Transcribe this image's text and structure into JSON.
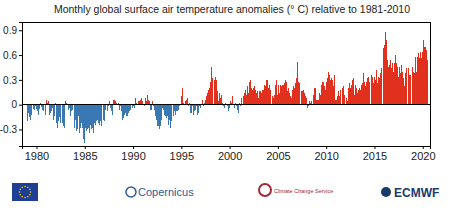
{
  "chart_data": {
    "type": "bar",
    "title": "Monthly global surface air temperature anomalies (° C) relative to 1981-2010",
    "color": {
      "positive": "#e2301f",
      "negative": "#3a78b4"
    },
    "grid": false,
    "xlim": [
      1978.5,
      2020.75
    ],
    "xticks": [
      1980,
      1985,
      1990,
      1995,
      2000,
      2005,
      2010,
      2015,
      2020
    ],
    "ylim": [
      -0.5,
      1.0
    ],
    "yticks": [
      -0.3,
      0,
      0.3,
      0.6,
      0.9
    ],
    "x": [
      1979.04,
      1979.13,
      1979.21,
      1979.29,
      1979.38,
      1979.46,
      1979.54,
      1979.63,
      1979.71,
      1979.79,
      1979.88,
      1979.96,
      1980.04,
      1980.13,
      1980.21,
      1980.29,
      1980.38,
      1980.46,
      1980.54,
      1980.63,
      1980.71,
      1980.79,
      1980.88,
      1980.96,
      1981.04,
      1981.13,
      1981.21,
      1981.29,
      1981.38,
      1981.46,
      1981.54,
      1981.63,
      1981.71,
      1981.79,
      1981.88,
      1981.96,
      1982.04,
      1982.13,
      1982.21,
      1982.29,
      1982.38,
      1982.46,
      1982.54,
      1982.63,
      1982.71,
      1982.79,
      1982.88,
      1982.96,
      1983.04,
      1983.13,
      1983.21,
      1983.29,
      1983.38,
      1983.46,
      1983.54,
      1983.63,
      1983.71,
      1983.79,
      1983.88,
      1983.96,
      1984.04,
      1984.13,
      1984.21,
      1984.29,
      1984.38,
      1984.46,
      1984.54,
      1984.63,
      1984.71,
      1984.79,
      1984.88,
      1984.96,
      1985.04,
      1985.13,
      1985.21,
      1985.29,
      1985.38,
      1985.46,
      1985.54,
      1985.63,
      1985.71,
      1985.79,
      1985.88,
      1985.96,
      1986.04,
      1986.13,
      1986.21,
      1986.29,
      1986.38,
      1986.46,
      1986.54,
      1986.63,
      1986.71,
      1986.79,
      1986.88,
      1986.96,
      1987.04,
      1987.13,
      1987.21,
      1987.29,
      1987.38,
      1987.46,
      1987.54,
      1987.63,
      1987.71,
      1987.79,
      1987.88,
      1987.96,
      1988.04,
      1988.13,
      1988.21,
      1988.29,
      1988.38,
      1988.46,
      1988.54,
      1988.63,
      1988.71,
      1988.79,
      1988.88,
      1988.96,
      1989.04,
      1989.13,
      1989.21,
      1989.29,
      1989.38,
      1989.46,
      1989.54,
      1989.63,
      1989.71,
      1989.79,
      1989.88,
      1989.96,
      1990.04,
      1990.13,
      1990.21,
      1990.29,
      1990.38,
      1990.46,
      1990.54,
      1990.63,
      1990.71,
      1990.79,
      1990.88,
      1990.96,
      1991.04,
      1991.13,
      1991.21,
      1991.29,
      1991.38,
      1991.46,
      1991.54,
      1991.63,
      1991.71,
      1991.79,
      1991.88,
      1991.96,
      1992.04,
      1992.13,
      1992.21,
      1992.29,
      1992.38,
      1992.46,
      1992.54,
      1992.63,
      1992.71,
      1992.79,
      1992.88,
      1992.96,
      1993.04,
      1993.13,
      1993.21,
      1993.29,
      1993.38,
      1993.46,
      1993.54,
      1993.63,
      1993.71,
      1993.79,
      1993.88,
      1993.96,
      1994.04,
      1994.13,
      1994.21,
      1994.29,
      1994.38,
      1994.46,
      1994.54,
      1994.63,
      1994.71,
      1994.79,
      1994.88,
      1994.96,
      1995.04,
      1995.13,
      1995.21,
      1995.29,
      1995.38,
      1995.46,
      1995.54,
      1995.63,
      1995.71,
      1995.79,
      1995.88,
      1995.96,
      1996.04,
      1996.13,
      1996.21,
      1996.29,
      1996.38,
      1996.46,
      1996.54,
      1996.63,
      1996.71,
      1996.79,
      1996.88,
      1996.96,
      1997.04,
      1997.13,
      1997.21,
      1997.29,
      1997.38,
      1997.46,
      1997.54,
      1997.63,
      1997.71,
      1997.79,
      1997.88,
      1997.96,
      1998.04,
      1998.13,
      1998.21,
      1998.29,
      1998.38,
      1998.46,
      1998.54,
      1998.63,
      1998.71,
      1998.79,
      1998.88,
      1998.96,
      1999.04,
      1999.13,
      1999.21,
      1999.29,
      1999.38,
      1999.46,
      1999.54,
      1999.63,
      1999.71,
      1999.79,
      1999.88,
      1999.96,
      2000.04,
      2000.13,
      2000.21,
      2000.29,
      2000.38,
      2000.46,
      2000.54,
      2000.63,
      2000.71,
      2000.79,
      2000.88,
      2000.96,
      2001.04,
      2001.13,
      2001.21,
      2001.29,
      2001.38,
      2001.46,
      2001.54,
      2001.63,
      2001.71,
      2001.79,
      2001.88,
      2001.96,
      2002.04,
      2002.13,
      2002.21,
      2002.29,
      2002.38,
      2002.46,
      2002.54,
      2002.63,
      2002.71,
      2002.79,
      2002.88,
      2002.96,
      2003.04,
      2003.13,
      2003.21,
      2003.29,
      2003.38,
      2003.46,
      2003.54,
      2003.63,
      2003.71,
      2003.79,
      2003.88,
      2003.96,
      2004.04,
      2004.13,
      2004.21,
      2004.29,
      2004.38,
      2004.46,
      2004.54,
      2004.63,
      2004.71,
      2004.79,
      2004.88,
      2004.96,
      2005.04,
      2005.13,
      2005.21,
      2005.29,
      2005.38,
      2005.46,
      2005.54,
      2005.63,
      2005.71,
      2005.79,
      2005.88,
      2005.96,
      2006.04,
      2006.13,
      2006.21,
      2006.29,
      2006.38,
      2006.46,
      2006.54,
      2006.63,
      2006.71,
      2006.79,
      2006.88,
      2006.96,
      2007.04,
      2007.13,
      2007.21,
      2007.29,
      2007.38,
      2007.46,
      2007.54,
      2007.63,
      2007.71,
      2007.79,
      2007.88,
      2007.96,
      2008.04,
      2008.13,
      2008.21,
      2008.29,
      2008.38,
      2008.46,
      2008.54,
      2008.63,
      2008.71,
      2008.79,
      2008.88,
      2008.96,
      2009.04,
      2009.13,
      2009.21,
      2009.29,
      2009.38,
      2009.46,
      2009.54,
      2009.63,
      2009.71,
      2009.79,
      2009.88,
      2009.96,
      2010.04,
      2010.13,
      2010.21,
      2010.29,
      2010.38,
      2010.46,
      2010.54,
      2010.63,
      2010.71,
      2010.79,
      2010.88,
      2010.96,
      2011.04,
      2011.13,
      2011.21,
      2011.29,
      2011.38,
      2011.46,
      2011.54,
      2011.63,
      2011.71,
      2011.79,
      2011.88,
      2011.96,
      2012.04,
      2012.13,
      2012.21,
      2012.29,
      2012.38,
      2012.46,
      2012.54,
      2012.63,
      2012.71,
      2012.79,
      2012.88,
      2012.96,
      2013.04,
      2013.13,
      2013.21,
      2013.29,
      2013.38,
      2013.46,
      2013.54,
      2013.63,
      2013.71,
      2013.79,
      2013.88,
      2013.96,
      2014.04,
      2014.13,
      2014.21,
      2014.29,
      2014.38,
      2014.46,
      2014.54,
      2014.63,
      2014.71,
      2014.79,
      2014.88,
      2014.96,
      2015.04,
      2015.13,
      2015.21,
      2015.29,
      2015.38,
      2015.46,
      2015.54,
      2015.63,
      2015.71,
      2015.79,
      2015.88,
      2015.96,
      2016.04,
      2016.13,
      2016.21,
      2016.29,
      2016.38,
      2016.46,
      2016.54,
      2016.63,
      2016.71,
      2016.79,
      2016.88,
      2016.96,
      2017.04,
      2017.13,
      2017.21,
      2017.29,
      2017.38,
      2017.46,
      2017.54,
      2017.63,
      2017.71,
      2017.79,
      2017.88,
      2017.96,
      2018.04,
      2018.13,
      2018.21,
      2018.29,
      2018.38,
      2018.46,
      2018.54,
      2018.63,
      2018.71,
      2018.79,
      2018.88,
      2018.96,
      2019.04,
      2019.13,
      2019.21,
      2019.29,
      2019.38,
      2019.46,
      2019.54,
      2019.63,
      2019.71,
      2019.79,
      2019.88,
      2019.96,
      2020.04,
      2020.13,
      2020.21,
      2020.29,
      2020.38,
      2020.46
    ],
    "values": [
      -0.2,
      -0.32,
      -0.1,
      -0.15,
      -0.18,
      -0.12,
      -0.16,
      -0.08,
      -0.05,
      -0.06,
      -0.02,
      0.05,
      -0.05,
      -0.08,
      -0.12,
      -0.05,
      0.02,
      -0.04,
      -0.03,
      -0.06,
      -0.08,
      -0.1,
      -0.02,
      -0.12,
      0.06,
      0.02,
      0.04,
      -0.06,
      -0.12,
      -0.1,
      -0.08,
      -0.04,
      -0.12,
      -0.18,
      -0.14,
      0.02,
      -0.22,
      -0.18,
      -0.28,
      -0.2,
      -0.15,
      -0.22,
      -0.26,
      -0.3,
      -0.22,
      -0.26,
      -0.28,
      -0.1,
      0.04,
      0.02,
      0.0,
      -0.06,
      -0.04,
      -0.1,
      -0.14,
      -0.08,
      -0.06,
      -0.18,
      -0.1,
      -0.28,
      -0.18,
      -0.32,
      -0.3,
      -0.26,
      -0.14,
      -0.34,
      -0.28,
      -0.22,
      -0.26,
      -0.28,
      -0.42,
      -0.46,
      -0.28,
      -0.4,
      -0.32,
      -0.3,
      -0.28,
      -0.34,
      -0.36,
      -0.24,
      -0.3,
      -0.28,
      -0.34,
      -0.26,
      -0.22,
      -0.24,
      -0.2,
      -0.18,
      -0.16,
      -0.22,
      -0.24,
      -0.2,
      -0.26,
      -0.2,
      -0.22,
      -0.18,
      -0.2,
      -0.06,
      -0.26,
      -0.14,
      -0.08,
      -0.02,
      0.04,
      -0.04,
      0.02,
      -0.08,
      -0.12,
      0.06,
      0.06,
      -0.04,
      0.04,
      0.02,
      0.0,
      0.02,
      -0.04,
      -0.06,
      -0.02,
      -0.08,
      -0.18,
      -0.12,
      -0.16,
      -0.12,
      -0.1,
      -0.14,
      -0.2,
      -0.14,
      -0.1,
      -0.08,
      -0.06,
      -0.06,
      -0.14,
      -0.04,
      -0.02,
      -0.04,
      0.18,
      0.08,
      0.02,
      0.0,
      0.04,
      0.04,
      -0.06,
      0.06,
      0.08,
      0.04,
      0.06,
      0.1,
      -0.02,
      0.08,
      0.04,
      0.12,
      0.1,
      0.06,
      0.04,
      -0.06,
      -0.06,
      -0.04,
      0.04,
      -0.02,
      -0.06,
      -0.14,
      -0.16,
      -0.18,
      -0.26,
      -0.26,
      -0.3,
      -0.22,
      -0.26,
      -0.18,
      -0.04,
      -0.06,
      -0.1,
      -0.12,
      -0.14,
      -0.16,
      -0.14,
      -0.2,
      -0.24,
      -0.18,
      -0.28,
      -0.2,
      -0.14,
      -0.3,
      -0.14,
      -0.08,
      -0.12,
      -0.08,
      -0.06,
      -0.08,
      -0.06,
      -0.02,
      0.0,
      -0.04,
      0.1,
      0.2,
      0.02,
      0.0,
      -0.06,
      0.04,
      0.06,
      0.08,
      -0.02,
      0.06,
      0.02,
      -0.1,
      -0.1,
      -0.02,
      -0.1,
      -0.12,
      -0.08,
      -0.06,
      -0.02,
      -0.06,
      -0.12,
      -0.1,
      -0.02,
      -0.04,
      -0.04,
      0.0,
      0.06,
      -0.02,
      0.02,
      0.08,
      0.06,
      0.1,
      0.14,
      0.18,
      0.2,
      0.22,
      0.28,
      0.46,
      0.32,
      0.36,
      0.34,
      0.3,
      0.34,
      0.3,
      0.16,
      0.16,
      0.04,
      0.14,
      0.08,
      0.12,
      -0.04,
      0.02,
      -0.02,
      -0.04,
      0.02,
      -0.04,
      0.0,
      -0.02,
      -0.08,
      -0.04,
      -0.2,
      0.04,
      0.02,
      0.1,
      0.0,
      -0.04,
      -0.04,
      0.02,
      -0.02,
      -0.06,
      -0.1,
      -0.12,
      0.02,
      -0.02,
      0.08,
      0.1,
      0.12,
      0.1,
      0.14,
      0.18,
      0.12,
      0.12,
      0.22,
      0.14,
      0.28,
      0.3,
      0.32,
      0.2,
      0.18,
      0.2,
      0.22,
      0.16,
      0.18,
      0.14,
      0.16,
      0.08,
      0.26,
      0.16,
      0.16,
      0.14,
      0.18,
      0.12,
      0.18,
      0.24,
      0.22,
      0.3,
      0.16,
      0.3,
      0.2,
      0.24,
      0.18,
      0.16,
      0.06,
      0.1,
      0.08,
      0.12,
      0.16,
      0.24,
      0.3,
      0.12,
      0.24,
      0.14,
      0.24,
      0.24,
      0.22,
      0.24,
      0.24,
      0.2,
      0.26,
      0.3,
      0.28,
      0.16,
      0.08,
      0.2,
      0.14,
      0.1,
      0.08,
      0.16,
      0.18,
      0.22,
      0.2,
      0.26,
      0.24,
      0.32,
      0.52,
      0.28,
      0.26,
      0.3,
      0.22,
      0.16,
      0.16,
      0.18,
      0.12,
      0.14,
      0.1,
      0.08,
      -0.04,
      -0.02,
      0.2,
      0.04,
      0.02,
      0.04,
      0.1,
      0.06,
      0.12,
      0.2,
      0.2,
      0.06,
      0.12,
      0.06,
      0.06,
      0.14,
      0.12,
      0.18,
      0.24,
      0.28,
      0.28,
      0.22,
      0.28,
      0.18,
      0.28,
      0.32,
      0.4,
      0.4,
      0.36,
      0.3,
      0.32,
      0.3,
      0.24,
      0.22,
      0.36,
      0.06,
      0.06,
      0.06,
      0.1,
      0.16,
      0.1,
      0.18,
      0.22,
      0.24,
      0.2,
      0.22,
      0.12,
      0.14,
      0.06,
      0.08,
      0.04,
      0.2,
      0.26,
      0.26,
      0.2,
      0.24,
      0.3,
      0.32,
      0.3,
      0.12,
      0.24,
      0.2,
      0.14,
      0.14,
      0.18,
      0.2,
      0.18,
      0.24,
      0.3,
      0.26,
      0.38,
      0.28,
      0.22,
      0.14,
      0.28,
      0.32,
      0.34,
      0.28,
      0.22,
      0.36,
      0.36,
      0.34,
      0.26,
      0.32,
      0.34,
      0.3,
      0.42,
      0.26,
      0.34,
      0.36,
      0.32,
      0.38,
      0.44,
      0.56,
      0.58,
      0.68,
      0.72,
      0.88,
      0.78,
      0.7,
      0.54,
      0.46,
      0.48,
      0.54,
      0.48,
      0.44,
      0.5,
      0.4,
      0.5,
      0.58,
      0.6,
      0.5,
      0.46,
      0.34,
      0.44,
      0.46,
      0.38,
      0.48,
      0.4,
      0.44,
      0.32,
      0.22,
      0.38,
      0.44,
      0.34,
      0.38,
      0.44,
      0.36,
      0.36,
      0.48,
      0.34,
      0.46,
      0.4,
      0.38,
      0.58,
      0.5,
      0.4,
      0.58,
      0.62,
      0.56,
      0.58,
      0.64,
      0.56,
      0.64,
      0.78,
      0.76,
      0.7,
      0.7,
      0.66,
      0.54
    ]
  },
  "footer": {
    "logos": [
      "Copernicus",
      "Climate Change Service",
      "ECMWF"
    ]
  }
}
